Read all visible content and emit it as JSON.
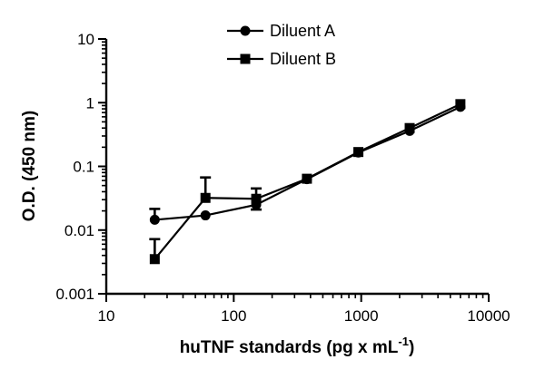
{
  "chart_data": {
    "type": "line",
    "x_scale": "log",
    "y_scale": "log",
    "xlim": [
      10,
      10000
    ],
    "ylim": [
      0.001,
      10
    ],
    "x_ticks": [
      "10",
      "100",
      "1000",
      "10000"
    ],
    "y_ticks": [
      "0.001",
      "0.01",
      "0.1",
      "1",
      "10"
    ],
    "xlabel": "huTNF standards (pg x mL",
    "xlabel_sup": "-1",
    "xlabel_close": ")",
    "ylabel": "O.D. (450 nm)",
    "grid": false,
    "legend_position": "top-center",
    "x": [
      24,
      60,
      150,
      375,
      950,
      2400,
      6000
    ],
    "series": [
      {
        "name": "Diluent A",
        "marker": "circle",
        "values": [
          0.0145,
          0.017,
          0.025,
          0.063,
          0.165,
          0.36,
          0.86
        ],
        "err_upper": [
          0.0215,
          null,
          null,
          null,
          null,
          null,
          null
        ],
        "err_lower": [
          null,
          null,
          0.021,
          null,
          null,
          null,
          null
        ]
      },
      {
        "name": "Diluent B",
        "marker": "square",
        "values": [
          0.0035,
          0.032,
          0.031,
          0.064,
          0.168,
          0.4,
          0.95
        ],
        "err_upper": [
          0.0072,
          0.067,
          0.045,
          null,
          null,
          null,
          null
        ],
        "err_lower": [
          null,
          null,
          null,
          null,
          null,
          null,
          null
        ]
      }
    ]
  }
}
